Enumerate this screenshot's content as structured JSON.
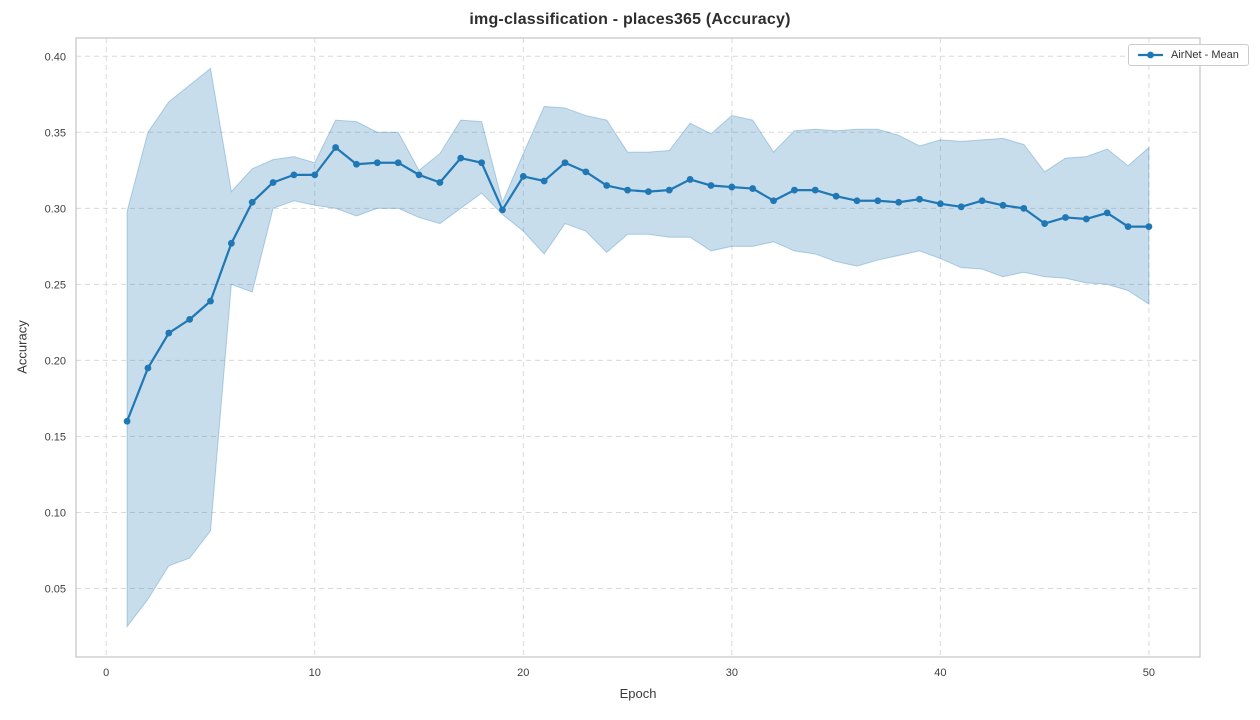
{
  "chart_data": {
    "type": "line",
    "title": "img-classification - places365 (Accuracy)",
    "xlabel": "Epoch",
    "ylabel": "Accuracy",
    "x": [
      1,
      2,
      3,
      4,
      5,
      6,
      7,
      8,
      9,
      10,
      11,
      12,
      13,
      14,
      15,
      16,
      17,
      18,
      19,
      20,
      21,
      22,
      23,
      24,
      25,
      26,
      27,
      28,
      29,
      30,
      31,
      32,
      33,
      34,
      35,
      36,
      37,
      38,
      39,
      40,
      41,
      42,
      43,
      44,
      45,
      46,
      47,
      48,
      49,
      50
    ],
    "series": [
      {
        "name": "AirNet - Mean",
        "color": "#1f77b4",
        "values": [
          0.16,
          0.195,
          0.218,
          0.227,
          0.239,
          0.277,
          0.304,
          0.317,
          0.322,
          0.322,
          0.34,
          0.329,
          0.33,
          0.33,
          0.322,
          0.317,
          0.333,
          0.33,
          0.299,
          0.321,
          0.318,
          0.33,
          0.324,
          0.315,
          0.312,
          0.311,
          0.312,
          0.319,
          0.315,
          0.314,
          0.313,
          0.305,
          0.312,
          0.312,
          0.308,
          0.305,
          0.305,
          0.304,
          0.306,
          0.303,
          0.301,
          0.305,
          0.302,
          0.3,
          0.29,
          0.294,
          0.293,
          0.297,
          0.288,
          0.288
        ],
        "band_upper": [
          0.298,
          0.35,
          0.37,
          0.381,
          0.392,
          0.311,
          0.326,
          0.332,
          0.334,
          0.33,
          0.358,
          0.357,
          0.35,
          0.35,
          0.325,
          0.336,
          0.358,
          0.357,
          0.304,
          0.336,
          0.367,
          0.366,
          0.361,
          0.358,
          0.337,
          0.337,
          0.338,
          0.356,
          0.349,
          0.361,
          0.358,
          0.337,
          0.351,
          0.352,
          0.351,
          0.352,
          0.352,
          0.348,
          0.341,
          0.345,
          0.344,
          0.345,
          0.346,
          0.342,
          0.324,
          0.333,
          0.334,
          0.339,
          0.328,
          0.34
        ],
        "band_lower": [
          0.025,
          0.043,
          0.065,
          0.07,
          0.088,
          0.25,
          0.245,
          0.3,
          0.305,
          0.302,
          0.3,
          0.295,
          0.3,
          0.3,
          0.294,
          0.29,
          0.3,
          0.31,
          0.296,
          0.285,
          0.27,
          0.29,
          0.285,
          0.271,
          0.283,
          0.283,
          0.281,
          0.281,
          0.272,
          0.275,
          0.275,
          0.278,
          0.272,
          0.27,
          0.265,
          0.262,
          0.266,
          0.269,
          0.272,
          0.267,
          0.261,
          0.26,
          0.255,
          0.258,
          0.255,
          0.254,
          0.251,
          0.25,
          0.246,
          0.237
        ],
        "band_fill_opacity": 0.25
      }
    ],
    "xlim": [
      -1.45,
      52.45
    ],
    "ylim": [
      0.005,
      0.412
    ],
    "xticks": {
      "values": [
        0,
        10,
        20,
        30,
        40,
        50
      ],
      "labels": [
        "0",
        "10",
        "20",
        "30",
        "40",
        "50"
      ]
    },
    "yticks": {
      "values": [
        0.05,
        0.1,
        0.15,
        0.2,
        0.25,
        0.3,
        0.35,
        0.4
      ],
      "labels": [
        "0.05",
        "0.10",
        "0.15",
        "0.20",
        "0.25",
        "0.30",
        "0.35",
        "0.40"
      ]
    },
    "grid": true,
    "grid_style": "dashed",
    "legend_position": "upper right",
    "colors": {
      "line": "#1f77b4",
      "band": "#1f77b4",
      "grid": "#dadada",
      "spine": "#c8c8c8",
      "title_text": "#2e2e2e",
      "tick_text": "#404040"
    }
  }
}
